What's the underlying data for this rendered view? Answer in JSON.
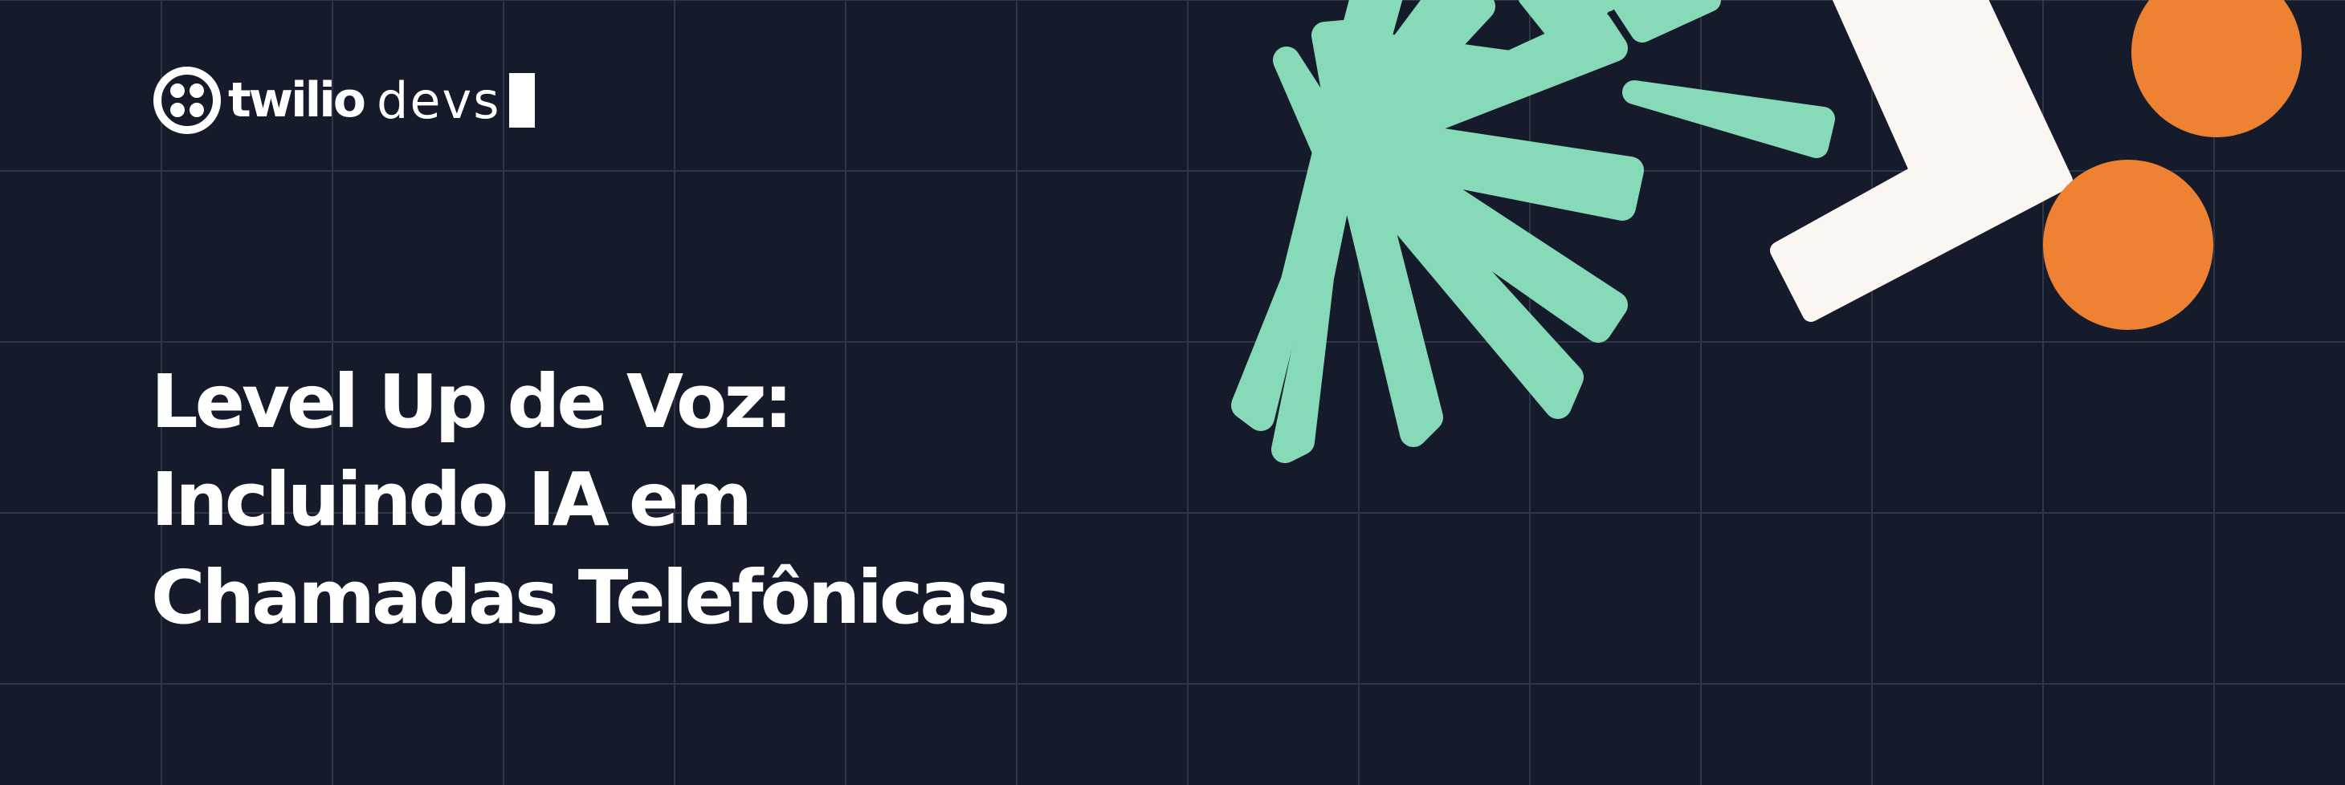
{
  "brand": {
    "wordmark": "twilio",
    "suffix": "devs"
  },
  "headline": {
    "lines": [
      "Level Up de Voz:",
      "Incluindo IA em",
      "Chamadas Telefônicas"
    ]
  },
  "decoration": {
    "icons": [
      "twilio-logo-icon",
      "asterisk-shape",
      "chevron-shape",
      "orange-circle"
    ],
    "colors": {
      "background": "#151b2b",
      "grid": "#2f3747",
      "asterisk": "#87dab7",
      "chevron": "#fbf6f2",
      "circle": "#ef8232",
      "text": "#ffffff"
    }
  }
}
